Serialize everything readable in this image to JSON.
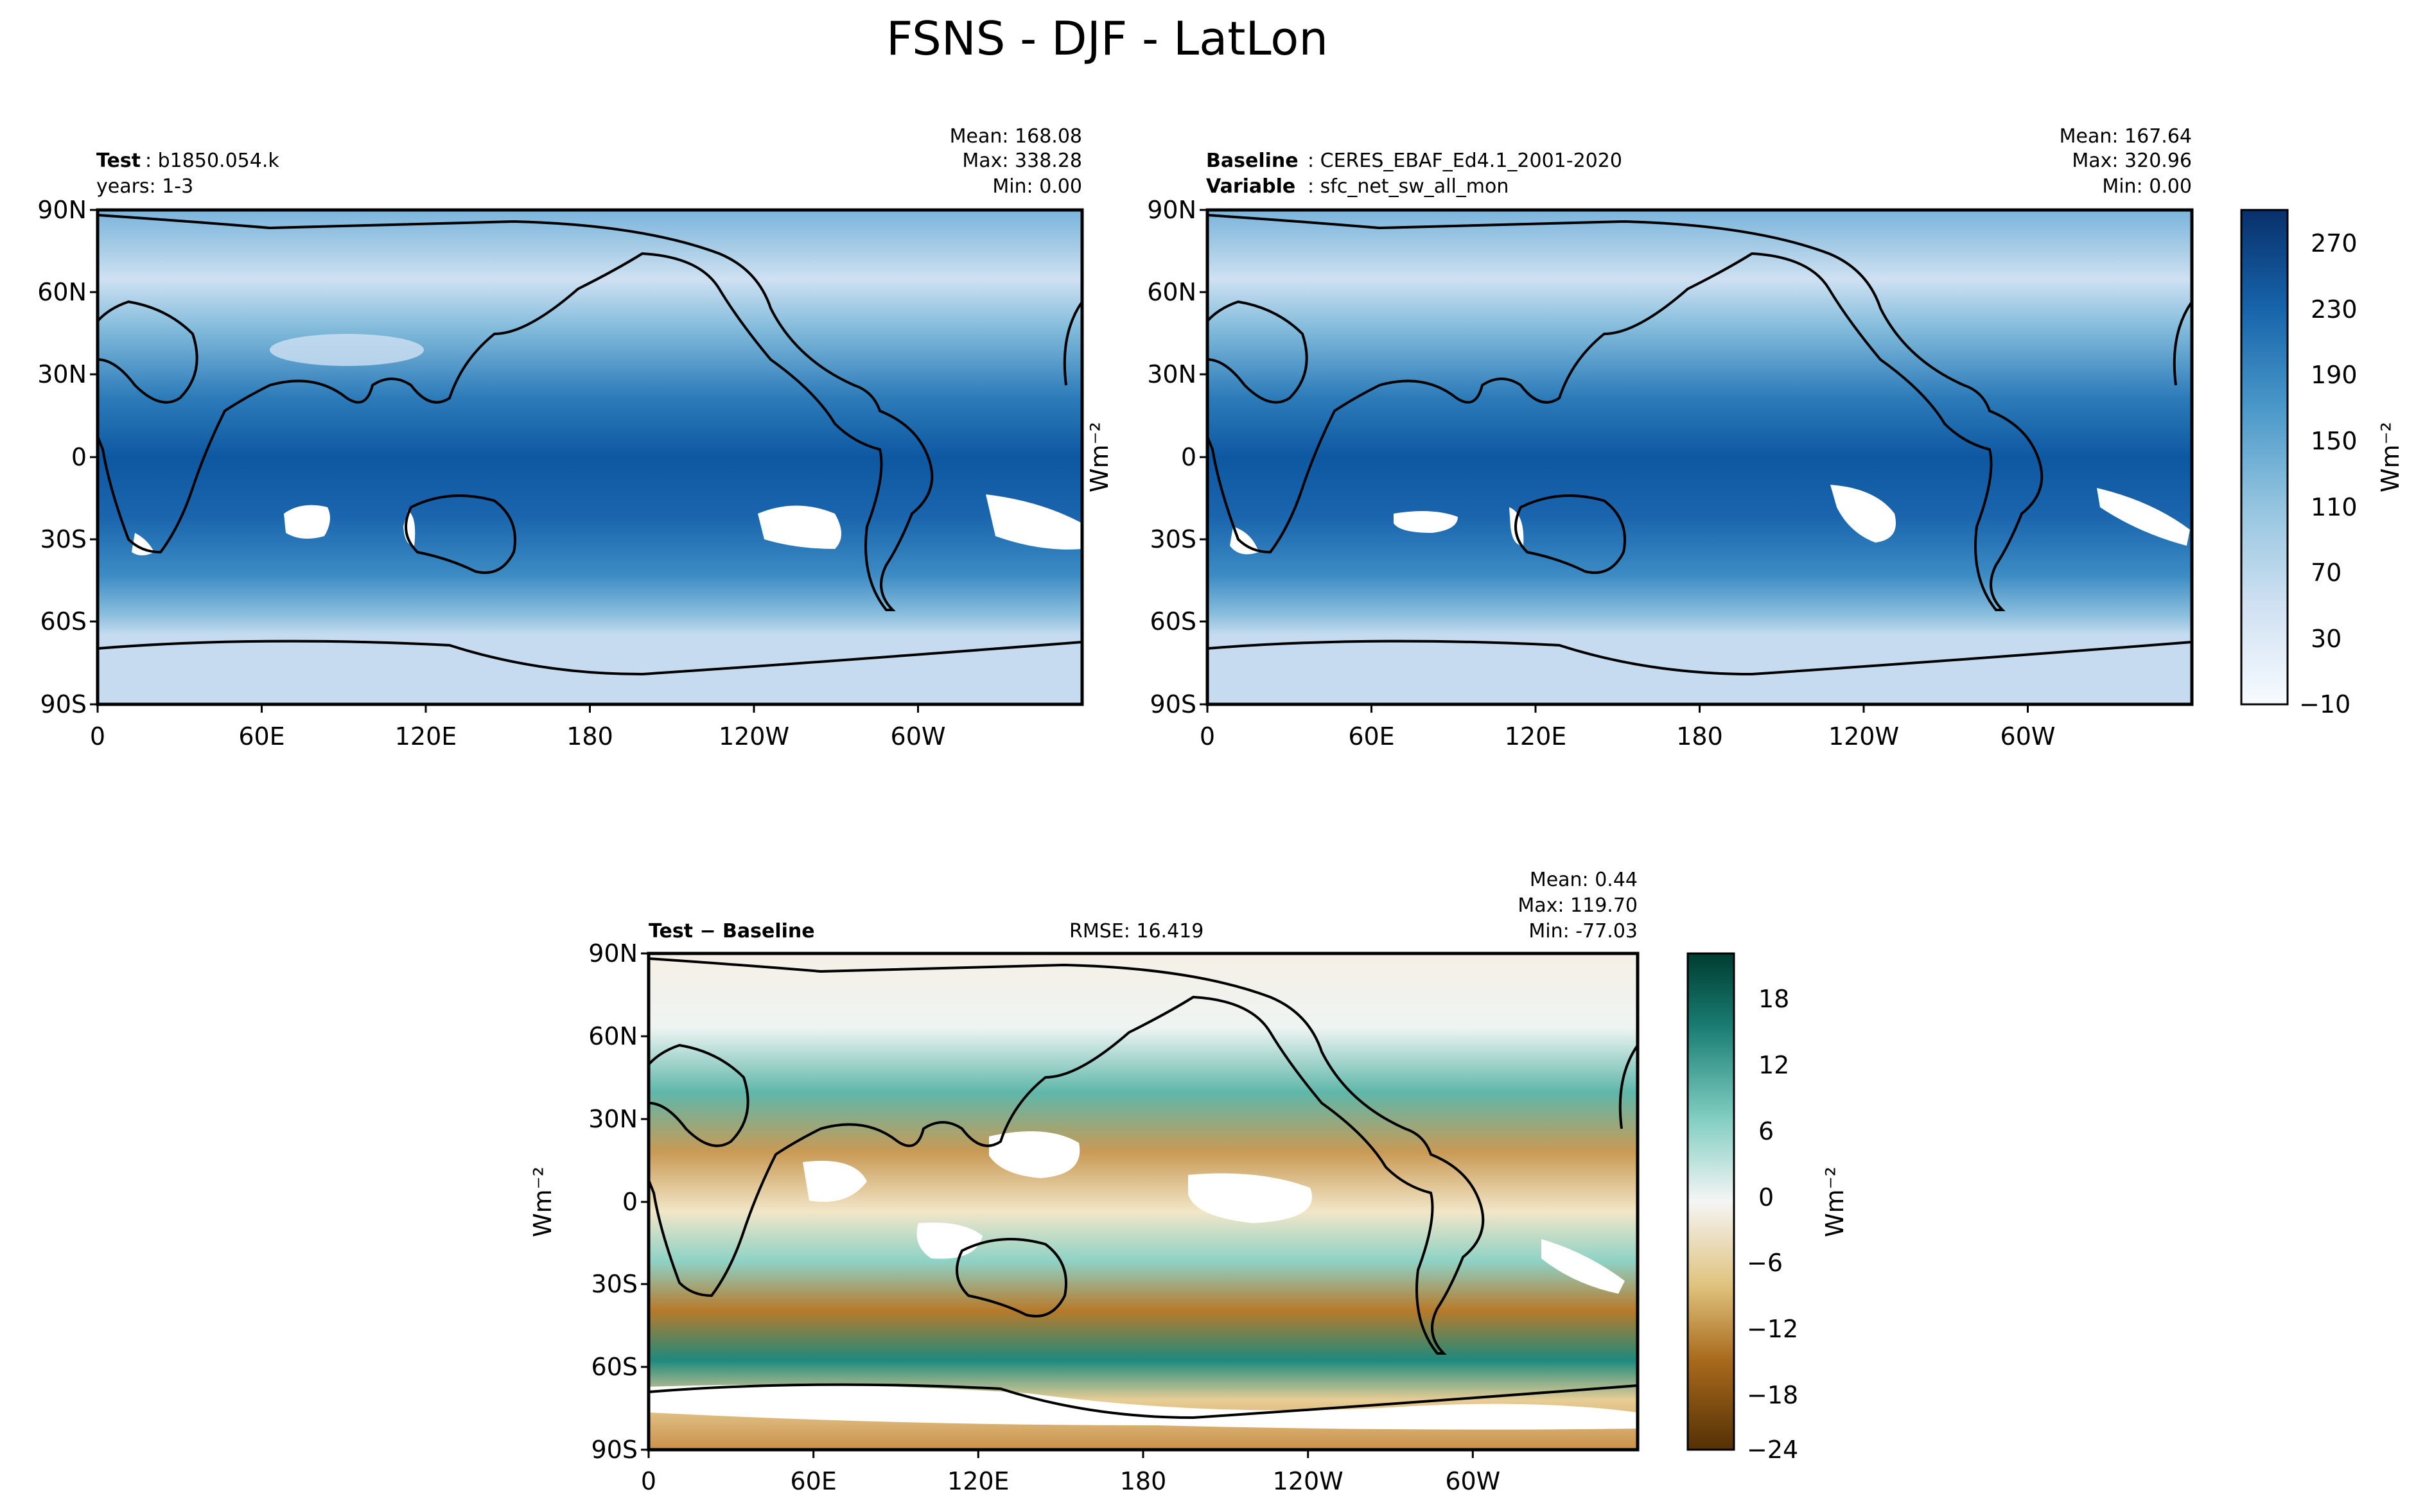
{
  "figure": {
    "title": "FSNS - DJF - LatLon"
  },
  "colors": {
    "blues": [
      "#f7fbff",
      "#e3eef9",
      "#d0e1f2",
      "#c2d9ee",
      "#b0d2e8",
      "#9cc9e1",
      "#82bbdb",
      "#6aaed6",
      "#56a0ce",
      "#4191c6",
      "#3282be",
      "#2171b5",
      "#1562a9",
      "#0a539e",
      "#08468b",
      "#08306b"
    ],
    "brbg": [
      "#543005",
      "#7b4b0d",
      "#9c5d14",
      "#bb7824",
      "#d19b4c",
      "#e3c17f",
      "#f1deb3",
      "#f5ecda",
      "#eaf3f1",
      "#cbece6",
      "#a7dfd5",
      "#7ecbbf",
      "#4fada3",
      "#27918a",
      "#0c7469",
      "#01594c",
      "#003c30"
    ],
    "land_line": "#000000"
  },
  "charts": {
    "test": {
      "label_bold": "Test",
      "label_text": ": b1850.054.k",
      "label_line2": "years: 1-3",
      "mean": "Mean: 168.08",
      "max": "Max: 338.28",
      "min": "Min:  0.00"
    },
    "baseline": {
      "label_bold": "Baseline",
      "label_text": ": CERES_EBAF_Ed4.1_2001-2020",
      "label2_bold": "Variable",
      "label2_text": ": sfc_net_sw_all_mon",
      "mean": "Mean: 167.64",
      "max": "Max: 320.96",
      "min": "Min:  0.00"
    },
    "diff": {
      "label_bold": "Test − Baseline",
      "rmse": "RMSE: 16.419",
      "mean": "Mean:  0.44",
      "max": "Max: 119.70",
      "min": "Min: -77.03"
    }
  },
  "chart_data": [
    {
      "type": "heatmap",
      "panel": "Test",
      "xlabel": "",
      "ylabel": "",
      "x_ticks": [
        "0",
        "60E",
        "120E",
        "180",
        "120W",
        "60W"
      ],
      "y_ticks": [
        "90N",
        "60N",
        "30N",
        "0",
        "30S",
        "60S",
        "90S"
      ],
      "xlim": [
        0,
        360
      ],
      "ylim": [
        -90,
        90
      ],
      "stats": {
        "mean": 168.08,
        "max": 338.28,
        "min": 0.0
      }
    },
    {
      "type": "heatmap",
      "panel": "Baseline",
      "xlabel": "",
      "ylabel": "Wm⁻²",
      "x_ticks": [
        "0",
        "60E",
        "120E",
        "180",
        "120W",
        "60W"
      ],
      "y_ticks": [
        "90N",
        "60N",
        "30N",
        "0",
        "30S",
        "60S",
        "90S"
      ],
      "xlim": [
        0,
        360
      ],
      "ylim": [
        -90,
        90
      ],
      "stats": {
        "mean": 167.64,
        "max": 320.96,
        "min": 0.0
      },
      "colorbar": {
        "ticks": [
          "270",
          "230",
          "190",
          "150",
          "110",
          "70",
          "30",
          "−10"
        ],
        "label": "Wm⁻²",
        "range": [
          -10,
          290
        ]
      }
    },
    {
      "type": "heatmap",
      "panel": "Test − Baseline",
      "xlabel": "",
      "ylabel": "Wm⁻²",
      "x_ticks": [
        "0",
        "60E",
        "120E",
        "180",
        "120W",
        "60W"
      ],
      "y_ticks": [
        "90N",
        "60N",
        "30N",
        "0",
        "30S",
        "60S",
        "90S"
      ],
      "xlim": [
        0,
        360
      ],
      "ylim": [
        -90,
        90
      ],
      "stats": {
        "mean": 0.44,
        "max": 119.7,
        "min": -77.03,
        "rmse": 16.419
      },
      "colorbar": {
        "ticks": [
          "18",
          "12",
          "6",
          "0",
          "−6",
          "−12",
          "−18",
          "−24"
        ],
        "label": "Wm⁻²",
        "range": [
          -24,
          21
        ]
      }
    }
  ]
}
